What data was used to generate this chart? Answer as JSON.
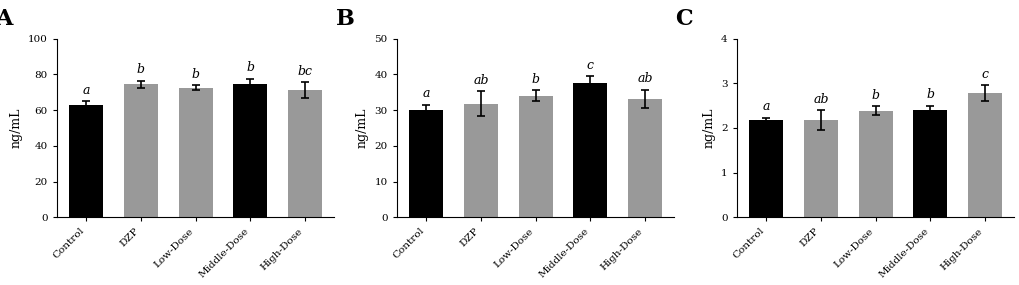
{
  "panels": [
    {
      "label": "A",
      "ylabel": "ng/mL",
      "ylim": [
        0,
        100
      ],
      "yticks": [
        0,
        20,
        40,
        60,
        80,
        100
      ],
      "categories": [
        "Control",
        "DZP",
        "Low-Dose",
        "Middle-Dose",
        "High-Dose"
      ],
      "values": [
        63.0,
        74.5,
        72.5,
        74.5,
        71.0
      ],
      "errors": [
        2.0,
        2.0,
        1.5,
        3.0,
        4.5
      ],
      "colors": [
        "#000000",
        "#999999",
        "#999999",
        "#000000",
        "#999999"
      ],
      "sig_labels": [
        "a",
        "b",
        "b",
        "b",
        "bc"
      ]
    },
    {
      "label": "B",
      "ylabel": "ng/mL",
      "ylim": [
        0,
        50
      ],
      "yticks": [
        0,
        10,
        20,
        30,
        40,
        50
      ],
      "categories": [
        "Control",
        "DZP",
        "Low-Dose",
        "Middle-Dose",
        "High-Dose"
      ],
      "values": [
        30.0,
        31.8,
        34.0,
        37.5,
        33.2
      ],
      "errors": [
        1.5,
        3.5,
        1.5,
        2.0,
        2.5
      ],
      "colors": [
        "#000000",
        "#999999",
        "#999999",
        "#000000",
        "#999999"
      ],
      "sig_labels": [
        "a",
        "ab",
        "b",
        "c",
        "ab"
      ]
    },
    {
      "label": "C",
      "ylabel": "ng/mL",
      "ylim": [
        0,
        4
      ],
      "yticks": [
        0,
        1,
        2,
        3,
        4
      ],
      "categories": [
        "Control",
        "DZP",
        "Low-Dose",
        "Middle-Dose",
        "High-Dose"
      ],
      "values": [
        2.18,
        2.18,
        2.38,
        2.4,
        2.78
      ],
      "errors": [
        0.05,
        0.22,
        0.1,
        0.1,
        0.18
      ],
      "colors": [
        "#000000",
        "#999999",
        "#999999",
        "#000000",
        "#999999"
      ],
      "sig_labels": [
        "a",
        "ab",
        "b",
        "b",
        "c"
      ]
    }
  ],
  "background_color": "#ffffff",
  "bar_width": 0.62,
  "tick_fontsize": 7.5,
  "label_fontsize": 9,
  "panel_label_fontsize": 16,
  "sig_fontsize": 9
}
